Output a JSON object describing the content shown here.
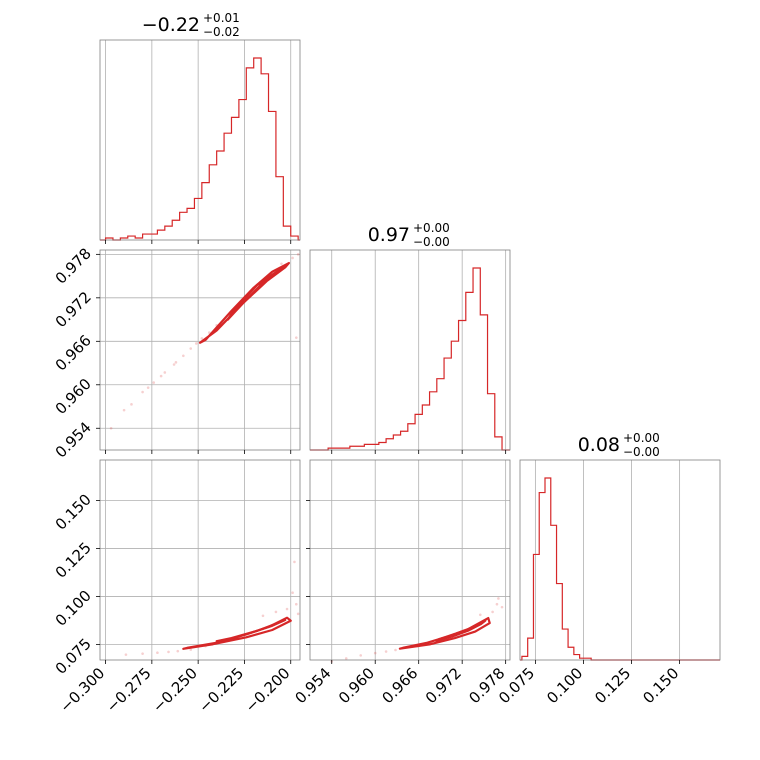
{
  "chart_data": {
    "type": "corner",
    "parameters": [
      "p0",
      "p1",
      "p2"
    ],
    "color": "#d62728",
    "grid": true,
    "titles": [
      {
        "value": "−0.22",
        "plus": "+0.01",
        "minus": "−0.02"
      },
      {
        "value": "0.97",
        "plus": "+0.00",
        "minus": "−0.00"
      },
      {
        "value": "0.08",
        "plus": "+0.00",
        "minus": "−0.00"
      }
    ],
    "ranges": {
      "p0": [
        -0.303,
        -0.195
      ],
      "p1": [
        0.951,
        0.9786
      ],
      "p2": [
        0.067,
        0.171
      ]
    },
    "ticks": {
      "p0": {
        "values": [
          -0.3,
          -0.275,
          -0.25,
          -0.225,
          -0.2
        ],
        "labels": [
          "−0.300",
          "−0.275",
          "−0.250",
          "−0.225",
          "−0.200"
        ]
      },
      "p1": {
        "values": [
          0.954,
          0.96,
          0.966,
          0.972,
          0.978
        ],
        "labels": [
          "0.954",
          "0.960",
          "0.966",
          "0.972",
          "0.978"
        ]
      },
      "p2": {
        "values": [
          0.075,
          0.1,
          0.125,
          0.15
        ],
        "labels": [
          "0.075",
          "0.100",
          "0.125",
          "0.150"
        ]
      }
    },
    "hist1d": [
      {
        "param": "p0",
        "edges": [
          -0.3,
          -0.296,
          -0.292,
          -0.288,
          -0.284,
          -0.28,
          -0.276,
          -0.272,
          -0.268,
          -0.264,
          -0.26,
          -0.256,
          -0.252,
          -0.248,
          -0.244,
          -0.24,
          -0.236,
          -0.232,
          -0.228,
          -0.224,
          -0.22,
          -0.216,
          -0.212,
          -0.208,
          -0.204,
          -0.2,
          -0.196
        ],
        "counts": [
          1,
          0,
          1,
          2,
          1,
          3,
          3,
          5,
          7,
          10,
          14,
          16,
          21,
          29,
          38,
          45,
          54,
          62,
          71,
          87,
          92,
          84,
          65,
          32,
          7,
          2
        ]
      },
      {
        "param": "p1",
        "edges": [
          0.9535,
          0.9545,
          0.9555,
          0.9565,
          0.9575,
          0.9585,
          0.9595,
          0.9605,
          0.9615,
          0.9625,
          0.9635,
          0.9645,
          0.9655,
          0.9665,
          0.9675,
          0.9685,
          0.9695,
          0.9705,
          0.9715,
          0.9725,
          0.9735,
          0.9745,
          0.9755,
          0.9765,
          0.9775
        ],
        "counts": [
          1,
          1,
          1,
          2,
          2,
          3,
          3,
          4,
          6,
          8,
          10,
          14,
          19,
          24,
          31,
          38,
          49,
          58,
          69,
          84,
          97,
          72,
          30,
          7
        ]
      },
      {
        "param": "p2",
        "edges": [
          0.068,
          0.071,
          0.074,
          0.077,
          0.08,
          0.083,
          0.086,
          0.089,
          0.092,
          0.095,
          0.098,
          0.101,
          0.104,
          0.107,
          0.11
        ],
        "counts": [
          2,
          12,
          58,
          92,
          100,
          74,
          42,
          17,
          7,
          3,
          1,
          1,
          0,
          0
        ]
      }
    ],
    "hist2d": [
      {
        "x": "p0",
        "y": "p1",
        "contours": [
          {
            "level": 0.39,
            "points": [
              [
                -0.229,
                0.9708
              ],
              [
                -0.218,
                0.9738
              ],
              [
                -0.21,
                0.9752
              ],
              [
                -0.204,
                0.9762
              ],
              [
                -0.207,
                0.9756
              ],
              [
                -0.215,
                0.9741
              ],
              [
                -0.226,
                0.9712
              ],
              [
                -0.234,
                0.969
              ],
              [
                -0.232,
                0.9698
              ]
            ]
          },
          {
            "level": 0.86,
            "points": [
              [
                -0.246,
                0.9662
              ],
              [
                -0.232,
                0.9702
              ],
              [
                -0.22,
                0.9734
              ],
              [
                -0.21,
                0.9756
              ],
              [
                -0.201,
                0.9768
              ],
              [
                -0.203,
                0.9762
              ],
              [
                -0.213,
                0.9743
              ],
              [
                -0.226,
                0.9712
              ],
              [
                -0.24,
                0.9675
              ],
              [
                -0.249,
                0.9658
              ]
            ]
          }
        ],
        "points": [
          [
            -0.297,
            0.954
          ],
          [
            -0.286,
            0.9573
          ],
          [
            -0.28,
            0.959
          ],
          [
            -0.274,
            0.9603
          ],
          [
            -0.268,
            0.9617
          ],
          [
            -0.263,
            0.9628
          ],
          [
            -0.258,
            0.964
          ],
          [
            -0.254,
            0.965
          ],
          [
            -0.251,
            0.9657
          ],
          [
            -0.248,
            0.9664
          ],
          [
            -0.196,
            0.978
          ],
          [
            -0.199,
            0.9775
          ],
          [
            -0.197,
            0.9665
          ],
          [
            -0.244,
            0.9672
          ],
          [
            -0.24,
            0.9682
          ],
          [
            -0.212,
            0.975
          ],
          [
            -0.205,
            0.9767
          ],
          [
            -0.262,
            0.9631
          ],
          [
            -0.27,
            0.9612
          ],
          [
            -0.277,
            0.9596
          ],
          [
            -0.29,
            0.9565
          ]
        ]
      },
      {
        "x": "p0",
        "y": "p2",
        "contours": [
          {
            "level": 0.39,
            "points": [
              [
                -0.236,
                0.0772
              ],
              [
                -0.222,
                0.081
              ],
              [
                -0.21,
                0.0848
              ],
              [
                -0.203,
                0.0878
              ],
              [
                -0.207,
                0.0862
              ],
              [
                -0.218,
                0.0822
              ],
              [
                -0.232,
                0.0784
              ],
              [
                -0.24,
                0.0768
              ]
            ]
          },
          {
            "level": 0.86,
            "points": [
              [
                -0.256,
                0.0733
              ],
              [
                -0.24,
                0.076
              ],
              [
                -0.225,
                0.08
              ],
              [
                -0.212,
                0.0842
              ],
              [
                -0.202,
                0.089
              ],
              [
                -0.2,
                0.0874
              ],
              [
                -0.21,
                0.0826
              ],
              [
                -0.224,
                0.0788
              ],
              [
                -0.242,
                0.0752
              ],
              [
                -0.258,
                0.0728
              ]
            ]
          }
        ],
        "points": [
          [
            -0.289,
            0.0698
          ],
          [
            -0.28,
            0.0703
          ],
          [
            -0.272,
            0.0708
          ],
          [
            -0.266,
            0.0712
          ],
          [
            -0.261,
            0.0716
          ],
          [
            -0.254,
            0.0724
          ],
          [
            -0.198,
            0.118
          ],
          [
            -0.199,
            0.102
          ],
          [
            -0.197,
            0.096
          ],
          [
            -0.202,
            0.0935
          ],
          [
            -0.215,
            0.09
          ],
          [
            -0.246,
            0.0742
          ],
          [
            -0.208,
            0.092
          ],
          [
            -0.196,
            0.091
          ]
        ]
      },
      {
        "x": "p1",
        "y": "p2",
        "contours": [
          {
            "level": 0.39,
            "points": [
              [
                0.9688,
                0.0778
              ],
              [
                0.9712,
                0.0808
              ],
              [
                0.9735,
                0.084
              ],
              [
                0.9752,
                0.0875
              ],
              [
                0.9746,
                0.0857
              ],
              [
                0.9728,
                0.0822
              ],
              [
                0.9706,
                0.0792
              ],
              [
                0.9684,
                0.077
              ]
            ]
          },
          {
            "level": 0.86,
            "points": [
              [
                0.9638,
                0.0733
              ],
              [
                0.9672,
                0.076
              ],
              [
                0.97,
                0.0792
              ],
              [
                0.9728,
                0.083
              ],
              [
                0.9756,
                0.0888
              ],
              [
                0.9758,
                0.0862
              ],
              [
                0.9738,
                0.0818
              ],
              [
                0.971,
                0.0784
              ],
              [
                0.9676,
                0.0752
              ],
              [
                0.9634,
                0.0729
              ]
            ]
          }
        ],
        "points": [
          [
            0.954,
            0.0662
          ],
          [
            0.956,
            0.0678
          ],
          [
            0.958,
            0.0694
          ],
          [
            0.96,
            0.0706
          ],
          [
            0.9615,
            0.0714
          ],
          [
            0.9628,
            0.0722
          ],
          [
            0.9768,
            0.096
          ],
          [
            0.977,
            0.099
          ],
          [
            0.9775,
            0.0945
          ],
          [
            0.9762,
            0.092
          ],
          [
            0.9745,
            0.0905
          ],
          [
            0.9658,
            0.0742
          ]
        ]
      }
    ]
  }
}
